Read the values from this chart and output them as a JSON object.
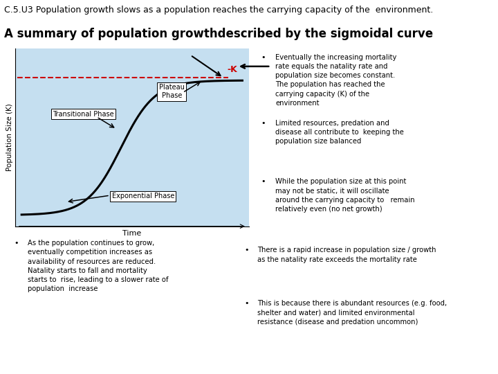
{
  "header_bg": "#99cc66",
  "header_text": "C.5.U3 Population growth slows as a population reaches the carrying capacity of the  environment.",
  "header_fontsize": 9,
  "subheader_bg": "#ddeebb",
  "subheader_text": "A summary of population growthdescribed by the sigmoidal curve",
  "subheader_fontsize": 12,
  "figure_bg": "#c5dff0",
  "curve_color": "#000000",
  "k_line_color": "#cc0000",
  "k_label_color": "#cc0000",
  "top_right_bullets": [
    "Eventually the increasing mortality\nrate equals the natality rate and\npopulation size becomes constant.\nThe population has reached the\ncarrying capacity (K) of the\nenvironment",
    "Limited resources, predation and\ndisease all contribute to  keeping the\npopulation size balanced",
    "While the population size at this point\nmay not be static, it will oscillate\naround the carrying capacity to   remain\nrelatively even (no net growth)"
  ],
  "bottom_left_bullet": "As the population continues to grow,\neventually competition increases as\navailability of resources are reduced.\nNatality starts to fall and mortality\nstarts to  rise, leading to a slower rate of\npopulation  increase",
  "bottom_right_bullets": [
    "There is a rapid increase in population size / growth\nas the natality rate exceeds the mortality rate",
    "This is because there is abundant resources (e.g. food,\nshelter and water) and limited environmental\nresistance (disease and predation uncommon)"
  ],
  "font_color": "#000000",
  "box_border": "#000000",
  "white_bg": "#ffffff"
}
